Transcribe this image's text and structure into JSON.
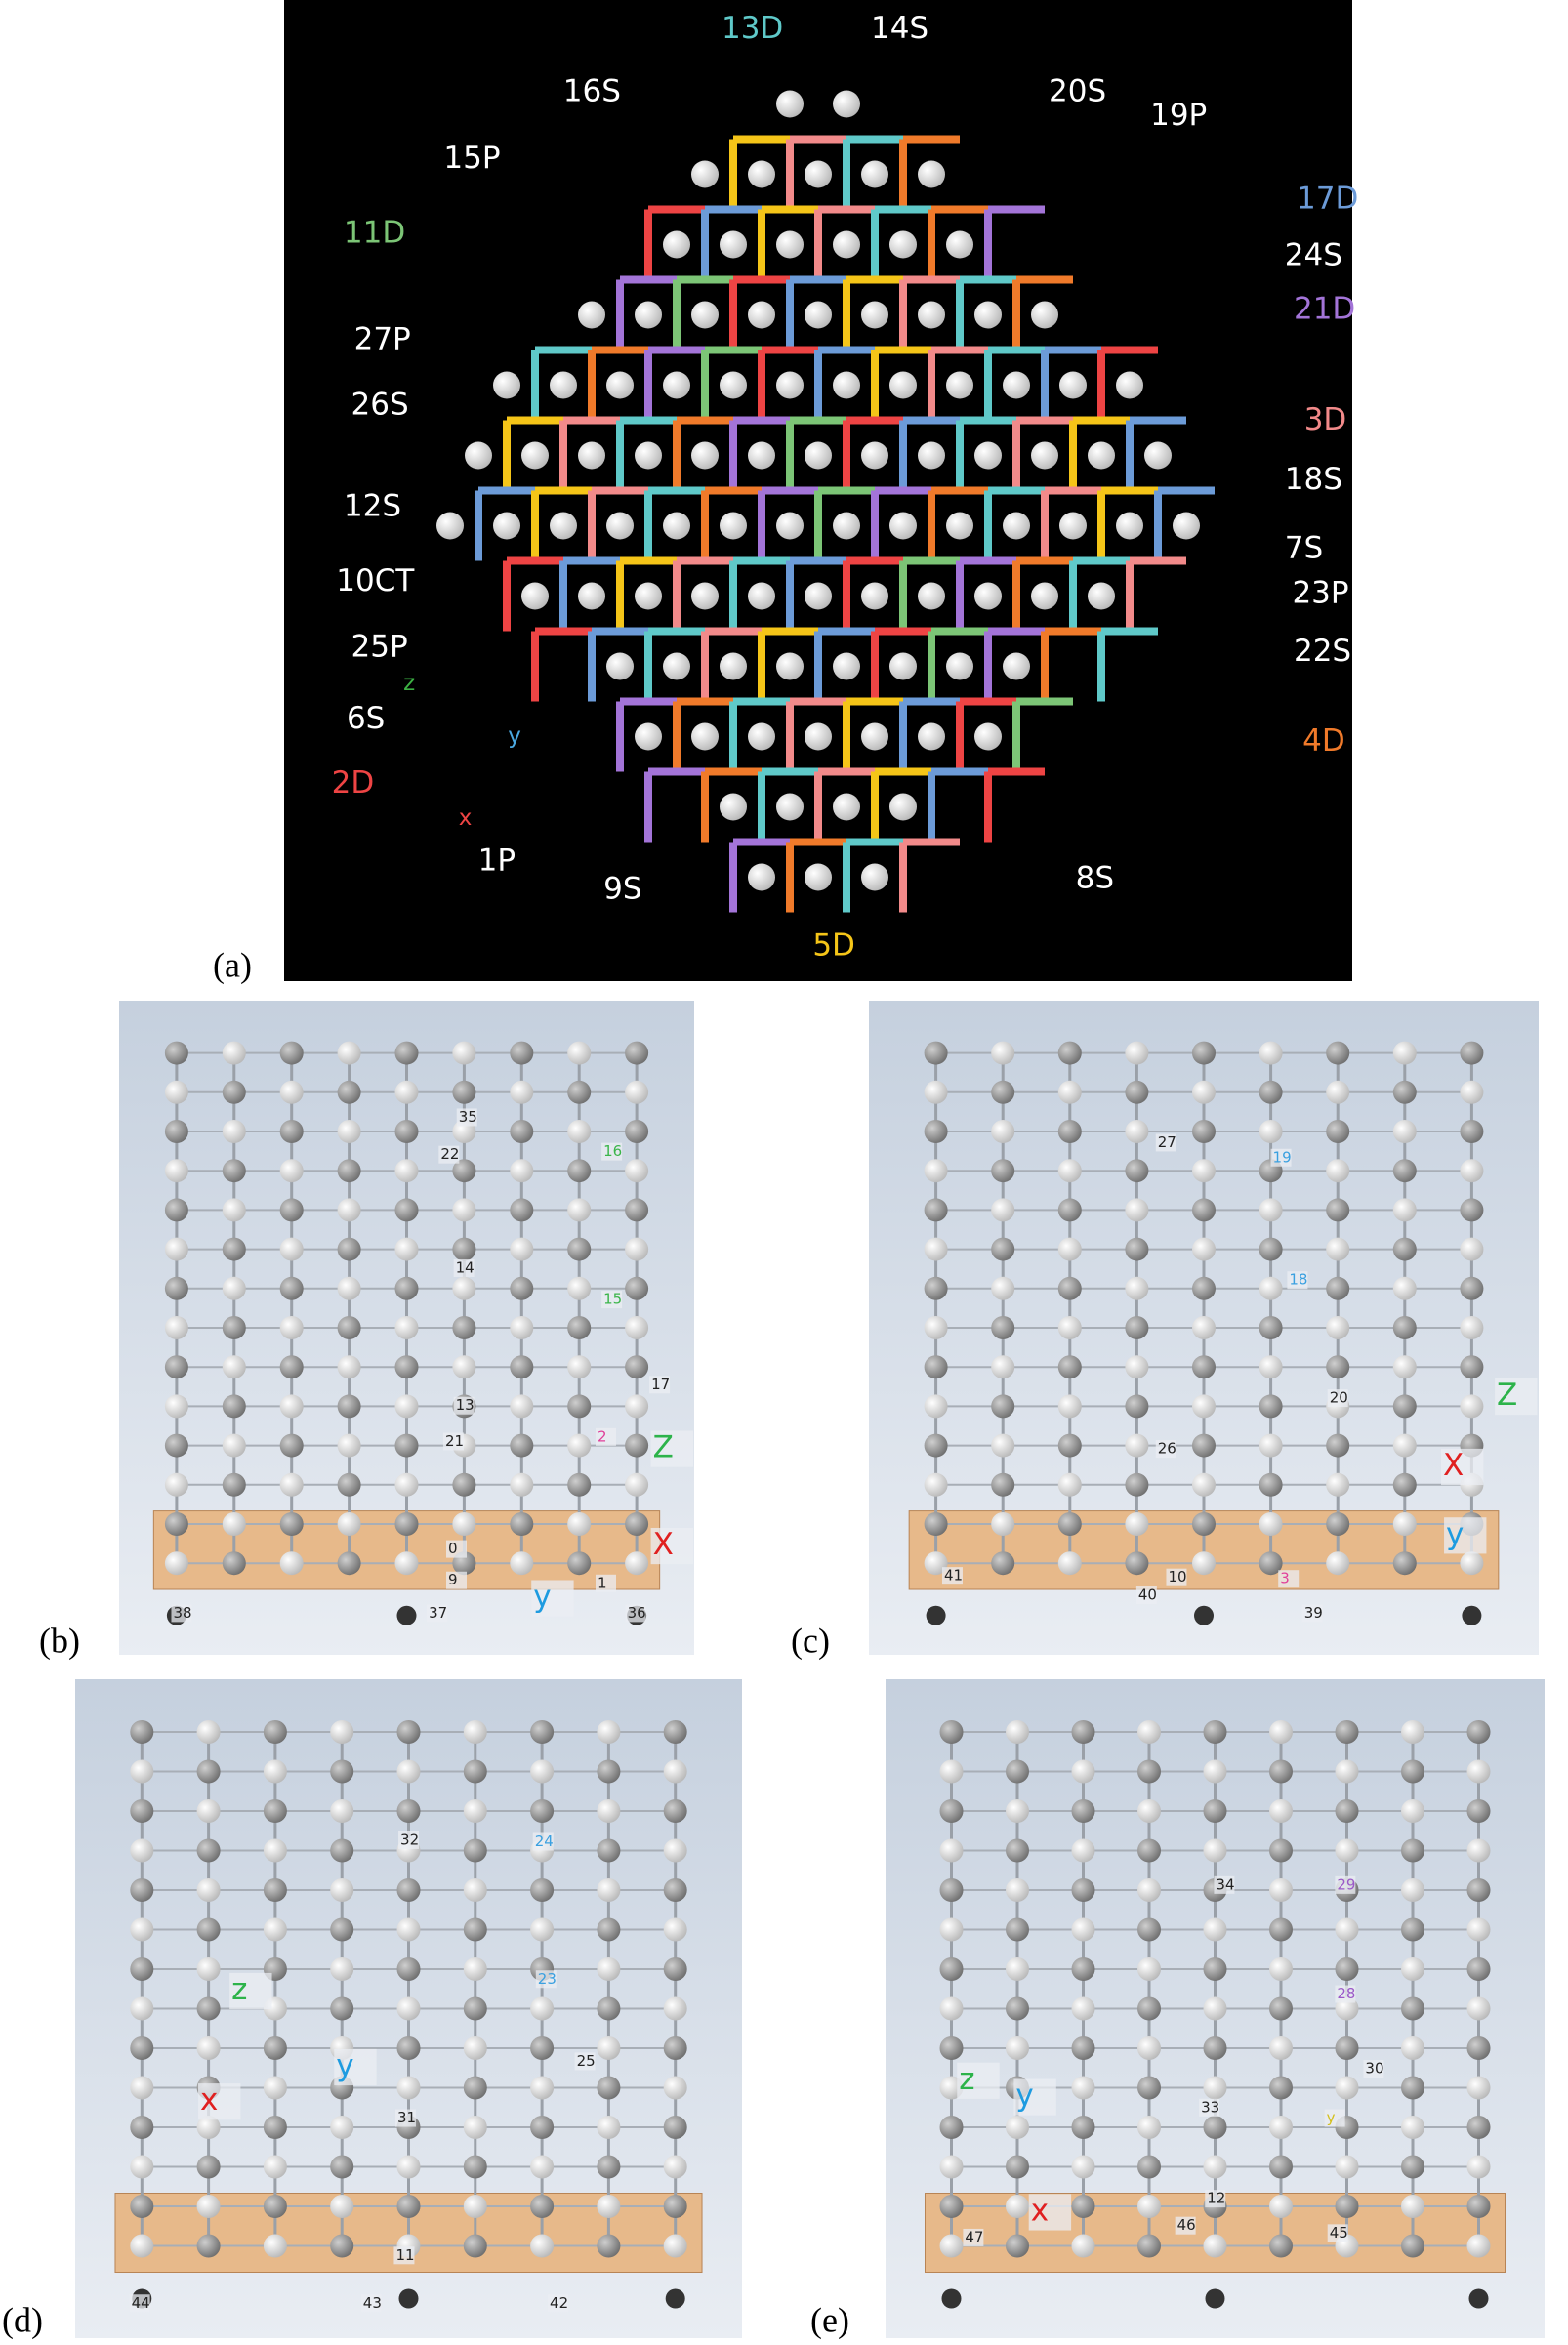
{
  "panels": [
    {
      "label": "(a)",
      "annotations": [
        "13D",
        "14S",
        "16S",
        "20S",
        "19P",
        "15P",
        "17D",
        "11D",
        "24S",
        "21D",
        "27P",
        "26S",
        "3D",
        "12S",
        "18S",
        "10CT",
        "7S",
        "23P",
        "25P",
        "22S",
        "z",
        "6S",
        "y",
        "2D",
        "4D",
        "x",
        "1P",
        "9S",
        "8S",
        "5D"
      ]
    },
    {
      "label": "(b)",
      "annotations": [
        "35",
        "22",
        "16",
        "14",
        "15",
        "17",
        "13",
        "21",
        "2",
        "Z",
        "X",
        "0",
        "9",
        "1",
        "y",
        "38",
        "37",
        "36"
      ]
    },
    {
      "label": "(c)",
      "annotations": [
        "27",
        "19",
        "18",
        "20",
        "26",
        "Z",
        "X",
        "y",
        "41",
        "10",
        "40",
        "3",
        "39"
      ]
    },
    {
      "label": "(d)",
      "annotations": [
        "32",
        "24",
        "23",
        "25",
        "z",
        "y",
        "x",
        "31",
        "11",
        "44",
        "43",
        "42"
      ]
    },
    {
      "label": "(e)",
      "annotations": [
        "34",
        "29",
        "28",
        "30",
        "33",
        "y",
        "z",
        "y",
        "x",
        "12",
        "47",
        "46",
        "45"
      ]
    }
  ]
}
